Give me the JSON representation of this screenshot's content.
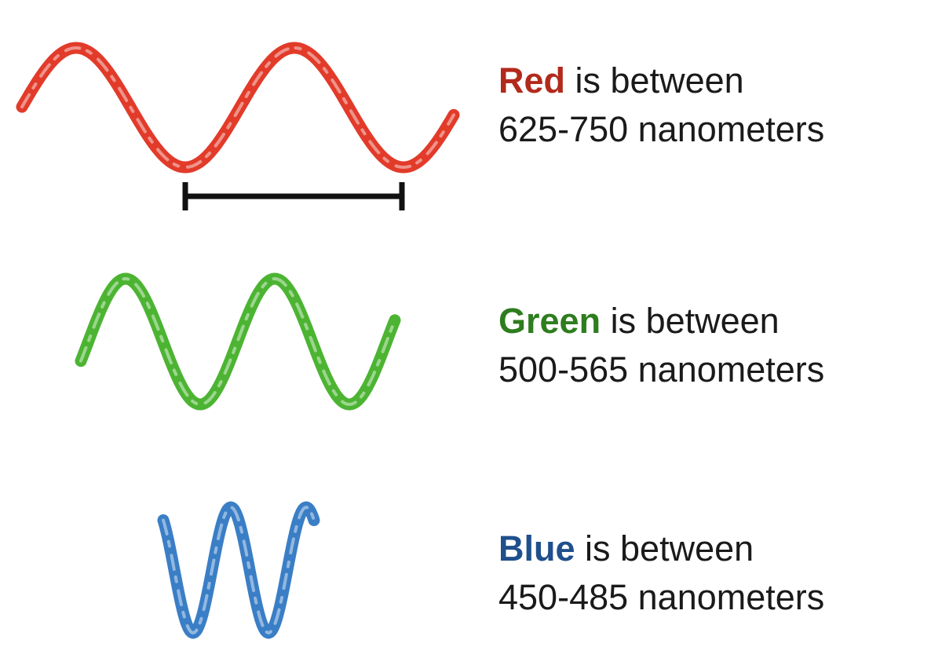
{
  "waves": [
    {
      "id": "red",
      "name": "Red",
      "suffix": " is between",
      "range_text": "625-750 nanometers",
      "color": "#e23b2a",
      "text_color": "#b22a1c",
      "wavelength_nm_min": 625,
      "wavelength_nm_max": 750,
      "shows_wavelength_bracket": true
    },
    {
      "id": "green",
      "name": "Green",
      "suffix": " is between",
      "range_text": "500-565 nanometers",
      "color": "#4cb432",
      "text_color": "#2e7d1e",
      "wavelength_nm_min": 500,
      "wavelength_nm_max": 565,
      "shows_wavelength_bracket": false
    },
    {
      "id": "blue",
      "name": "Blue",
      "suffix": " is between",
      "range_text": "450-485 nanometers",
      "color": "#3a7ec6",
      "text_color": "#1f4f8c",
      "wavelength_nm_min": 450,
      "wavelength_nm_max": 485,
      "shows_wavelength_bracket": false
    }
  ],
  "bracket_color": "#111111"
}
